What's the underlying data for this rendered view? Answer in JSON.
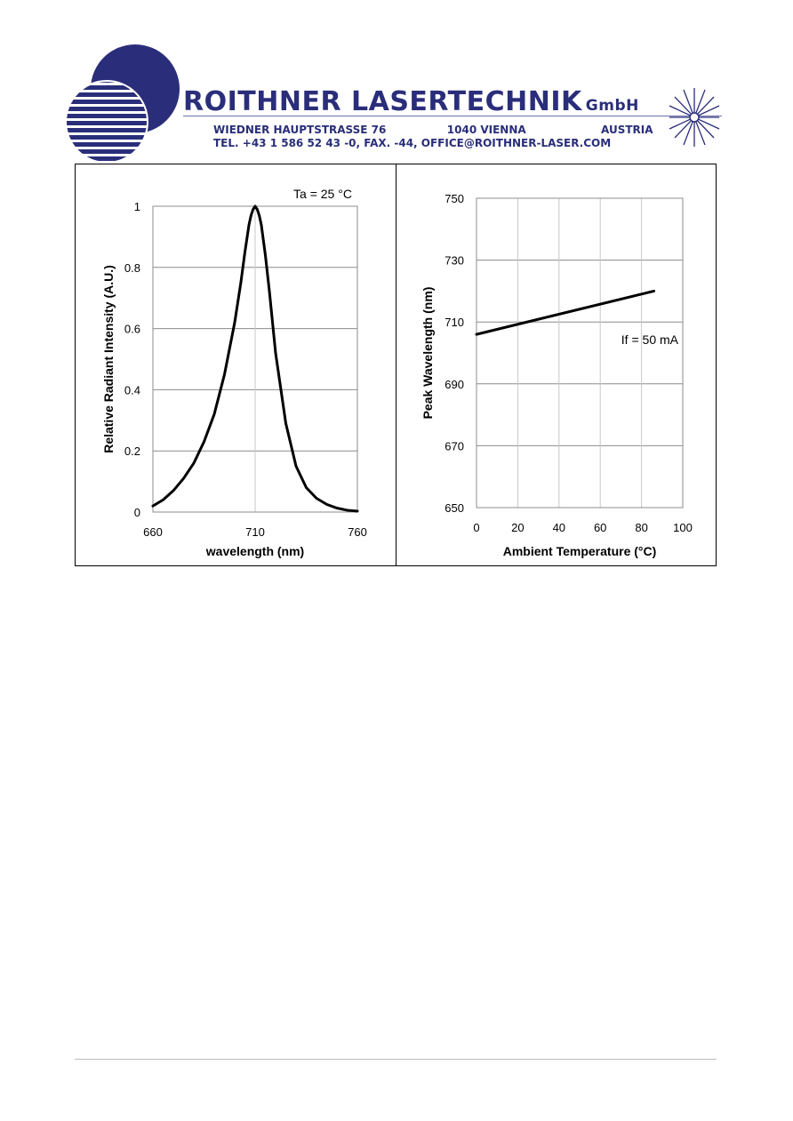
{
  "header": {
    "company": "ROITHNER LASERTECHNIK",
    "company_suffix": "GmbH",
    "street": "WIEDNER HAUPTSTRASSE 76",
    "city": "1040 VIENNA",
    "country": "AUSTRIA",
    "contact": "TEL. +43 1 586 52 43 -0, FAX. -44, OFFICE@ROITHNER-LASER.COM",
    "logo_icon": "striped-sphere-logo",
    "star_icon": "laser-starburst-icon",
    "brand_color": "#2a2e7a"
  },
  "chart_data": [
    {
      "type": "line",
      "title": "",
      "annotation": "Ta = 25 °C",
      "xlabel": "wavelength (nm)",
      "ylabel": "Relative Radiant Intensity (A.U.)",
      "xlim": [
        660,
        760
      ],
      "ylim": [
        0,
        1
      ],
      "x_ticks": [
        "660",
        "710",
        "760"
      ],
      "y_ticks": [
        "0",
        "0.2",
        "0.4",
        "0.6",
        "0.8",
        "1"
      ],
      "grid": true,
      "series": [
        {
          "x": [
            660,
            665,
            670,
            675,
            680,
            685,
            690,
            695,
            700,
            703,
            705,
            707,
            708,
            709,
            710,
            711,
            712,
            713,
            715,
            717,
            720,
            725,
            730,
            735,
            740,
            745,
            750,
            755,
            760
          ],
          "y": [
            0.02,
            0.04,
            0.07,
            0.11,
            0.16,
            0.23,
            0.32,
            0.45,
            0.62,
            0.75,
            0.85,
            0.94,
            0.97,
            0.99,
            1.0,
            0.99,
            0.97,
            0.94,
            0.84,
            0.72,
            0.52,
            0.29,
            0.15,
            0.08,
            0.045,
            0.025,
            0.013,
            0.006,
            0.003
          ]
        }
      ]
    },
    {
      "type": "line",
      "title": "",
      "annotation": "If = 50 mA",
      "xlabel": "Ambient Temperature (°C)",
      "ylabel": "Peak Wavelength (nm)",
      "xlim": [
        0,
        100
      ],
      "ylim": [
        650,
        750
      ],
      "x_ticks": [
        "0",
        "20",
        "40",
        "60",
        "80",
        "100"
      ],
      "y_ticks": [
        "650",
        "670",
        "690",
        "710",
        "730",
        "750"
      ],
      "grid": true,
      "series": [
        {
          "x": [
            0,
            86
          ],
          "y": [
            706,
            720
          ]
        }
      ]
    }
  ]
}
